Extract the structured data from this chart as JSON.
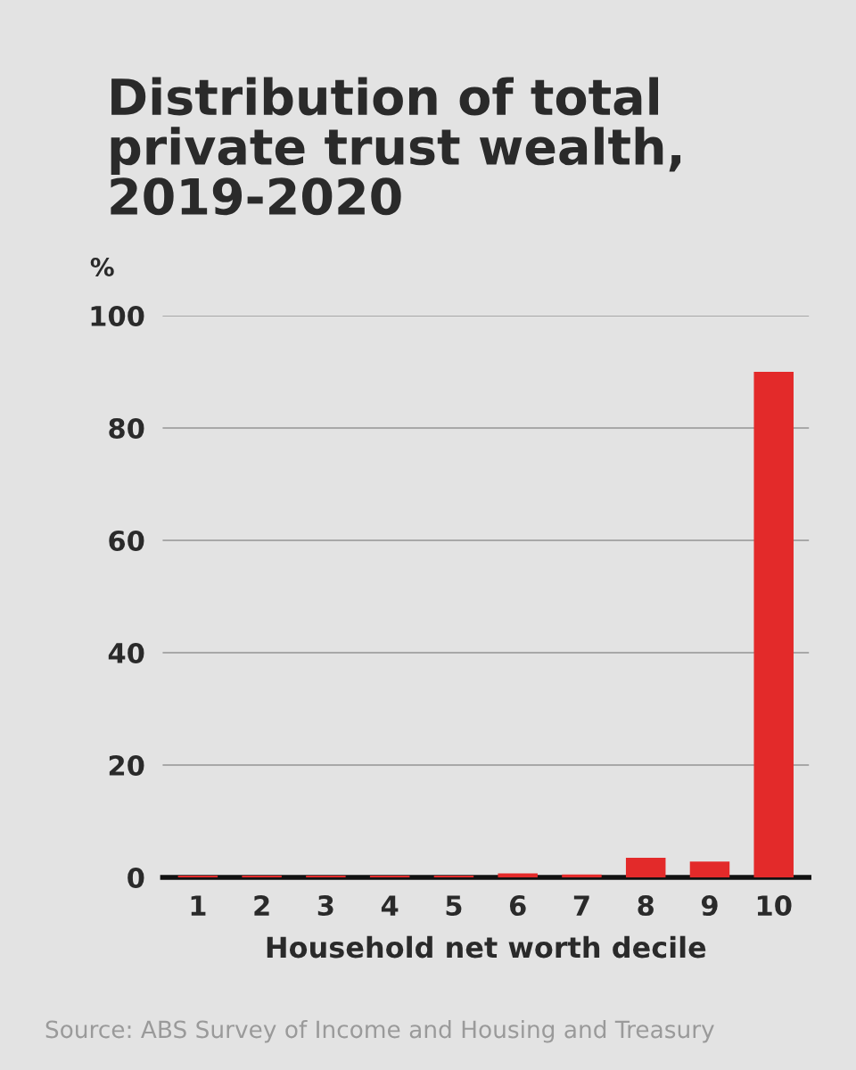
{
  "chart_data": {
    "type": "bar",
    "title": "Distribution of total\nprivate trust wealth,\n2019-2020",
    "ylabel": "%",
    "xlabel": "Household net worth decile",
    "categories": [
      "1",
      "2",
      "3",
      "4",
      "5",
      "6",
      "7",
      "8",
      "9",
      "10"
    ],
    "values": [
      0.3,
      0.3,
      0.3,
      0.3,
      0.3,
      0.7,
      0.5,
      3.5,
      2.8,
      90
    ],
    "color": "#e32a2a",
    "ylim": [
      0,
      100
    ],
    "yticks": [
      0,
      20,
      40,
      60,
      80,
      100
    ],
    "grid": "y",
    "annotations": [
      "Source: ABS Survey of Income and Housing and Treasury"
    ]
  }
}
